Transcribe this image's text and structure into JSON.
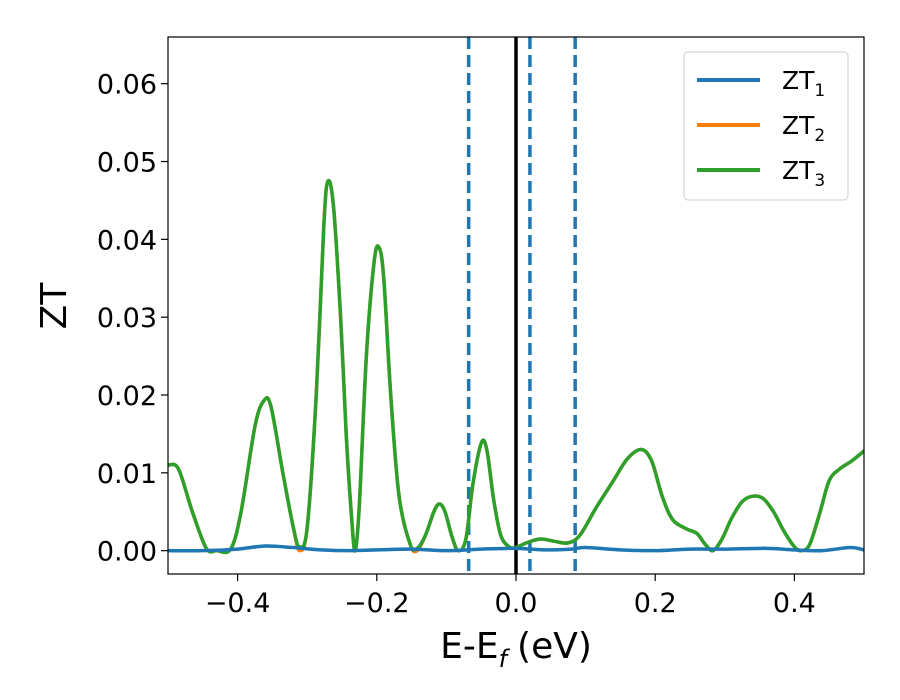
{
  "chart_data": {
    "type": "line",
    "xlabel": "E-E",
    "xlabel_subscript": "f",
    "xlabel_unit": "(eV)",
    "ylabel": "ZT",
    "xlim": [
      -0.5,
      0.5
    ],
    "ylim": [
      -0.003,
      0.066
    ],
    "x_ticks": [
      -0.4,
      -0.2,
      0.0,
      0.2,
      0.4
    ],
    "x_tick_labels": [
      "−0.4",
      "−0.2",
      "0.0",
      "0.2",
      "0.4"
    ],
    "y_ticks": [
      0.0,
      0.01,
      0.02,
      0.03,
      0.04,
      0.05,
      0.06
    ],
    "y_tick_labels": [
      "0.00",
      "0.01",
      "0.02",
      "0.03",
      "0.04",
      "0.05",
      "0.06"
    ],
    "grid": false,
    "legend_position": "top-right",
    "vertical_lines": [
      {
        "x": 0.0,
        "style": "solid",
        "color": "#000000"
      },
      {
        "x": -0.068,
        "style": "dashed",
        "color": "#1f77b4"
      },
      {
        "x": 0.02,
        "style": "dashed",
        "color": "#1f77b4"
      },
      {
        "x": 0.085,
        "style": "dashed",
        "color": "#1f77b4"
      }
    ],
    "series": [
      {
        "name": "ZT",
        "subscript": "1",
        "color": "#1f77b4",
        "points": [
          [
            -0.5,
            0.0
          ],
          [
            -0.45,
            0.0
          ],
          [
            -0.4,
            0.0002
          ],
          [
            -0.36,
            0.0006
          ],
          [
            -0.32,
            0.0004
          ],
          [
            -0.28,
            0.0001
          ],
          [
            -0.24,
            0.0
          ],
          [
            -0.2,
            0.0001
          ],
          [
            -0.15,
            0.0002
          ],
          [
            -0.1,
            0.0
          ],
          [
            -0.05,
            0.0002
          ],
          [
            0.0,
            0.0003
          ],
          [
            0.04,
            0.0001
          ],
          [
            0.08,
            0.0002
          ],
          [
            0.1,
            0.0004
          ],
          [
            0.15,
            0.0001
          ],
          [
            0.2,
            0.0
          ],
          [
            0.25,
            0.0002
          ],
          [
            0.3,
            0.0002
          ],
          [
            0.36,
            0.0003
          ],
          [
            0.4,
            0.0001
          ],
          [
            0.44,
            0.0
          ],
          [
            0.48,
            0.0004
          ],
          [
            0.5,
            0.0001
          ]
        ]
      },
      {
        "name": "ZT",
        "subscript": "2",
        "color": "#ff7f0e",
        "points": [
          [
            -0.5,
            0.011
          ],
          [
            -0.485,
            0.0105
          ],
          [
            -0.465,
            0.005
          ],
          [
            -0.445,
            0.0003
          ],
          [
            -0.43,
            0.0
          ],
          [
            -0.41,
            0.0002
          ],
          [
            -0.395,
            0.005
          ],
          [
            -0.375,
            0.016
          ],
          [
            -0.362,
            0.0193
          ],
          [
            -0.352,
            0.0185
          ],
          [
            -0.335,
            0.01
          ],
          [
            -0.32,
            0.003
          ],
          [
            -0.311,
            0.0
          ],
          [
            -0.3,
            0.003
          ],
          [
            -0.287,
            0.02
          ],
          [
            -0.276,
            0.042
          ],
          [
            -0.27,
            0.0475
          ],
          [
            -0.262,
            0.044
          ],
          [
            -0.252,
            0.03
          ],
          [
            -0.244,
            0.015
          ],
          [
            -0.236,
            0.004
          ],
          [
            -0.231,
            0.0
          ],
          [
            -0.225,
            0.006
          ],
          [
            -0.215,
            0.025
          ],
          [
            -0.204,
            0.037
          ],
          [
            -0.197,
            0.039
          ],
          [
            -0.19,
            0.035
          ],
          [
            -0.18,
            0.02
          ],
          [
            -0.168,
            0.007
          ],
          [
            -0.152,
            0.0008
          ],
          [
            -0.142,
            0.0
          ],
          [
            -0.13,
            0.002
          ],
          [
            -0.118,
            0.005
          ],
          [
            -0.11,
            0.006
          ],
          [
            -0.102,
            0.005
          ],
          [
            -0.092,
            0.0018
          ],
          [
            -0.083,
            0.0
          ],
          [
            -0.072,
            0.0015
          ],
          [
            -0.062,
            0.0085
          ],
          [
            -0.05,
            0.0138
          ],
          [
            -0.042,
            0.013
          ],
          [
            -0.032,
            0.0065
          ],
          [
            -0.022,
            0.002
          ],
          [
            -0.01,
            0.0005
          ],
          [
            0.0,
            0.0004
          ],
          [
            0.015,
            0.001
          ],
          [
            0.035,
            0.0015
          ],
          [
            0.055,
            0.0012
          ],
          [
            0.075,
            0.001
          ],
          [
            0.092,
            0.002
          ],
          [
            0.115,
            0.0055
          ],
          [
            0.14,
            0.009
          ],
          [
            0.16,
            0.0118
          ],
          [
            0.18,
            0.013
          ],
          [
            0.195,
            0.0115
          ],
          [
            0.21,
            0.007
          ],
          [
            0.225,
            0.004
          ],
          [
            0.245,
            0.0028
          ],
          [
            0.26,
            0.0022
          ],
          [
            0.272,
            0.0008
          ],
          [
            0.283,
            0.0
          ],
          [
            0.296,
            0.0015
          ],
          [
            0.31,
            0.0042
          ],
          [
            0.325,
            0.0063
          ],
          [
            0.34,
            0.007
          ],
          [
            0.355,
            0.0067
          ],
          [
            0.37,
            0.005
          ],
          [
            0.385,
            0.0025
          ],
          [
            0.4,
            0.0005
          ],
          [
            0.41,
            0.0
          ],
          [
            0.422,
            0.0008
          ],
          [
            0.437,
            0.005
          ],
          [
            0.45,
            0.009
          ],
          [
            0.465,
            0.0105
          ],
          [
            0.482,
            0.0115
          ],
          [
            0.5,
            0.0128
          ]
        ]
      },
      {
        "name": "ZT",
        "subscript": "3",
        "color": "#2ca02c",
        "points": [
          [
            -0.5,
            0.011
          ],
          [
            -0.485,
            0.0105
          ],
          [
            -0.465,
            0.005
          ],
          [
            -0.445,
            0.0003
          ],
          [
            -0.43,
            0.0
          ],
          [
            -0.41,
            0.0002
          ],
          [
            -0.395,
            0.005
          ],
          [
            -0.375,
            0.016
          ],
          [
            -0.362,
            0.0193
          ],
          [
            -0.352,
            0.0185
          ],
          [
            -0.335,
            0.01
          ],
          [
            -0.32,
            0.003
          ],
          [
            -0.311,
            0.0005
          ],
          [
            -0.3,
            0.003
          ],
          [
            -0.287,
            0.02
          ],
          [
            -0.276,
            0.042
          ],
          [
            -0.27,
            0.0475
          ],
          [
            -0.262,
            0.044
          ],
          [
            -0.252,
            0.03
          ],
          [
            -0.244,
            0.015
          ],
          [
            -0.236,
            0.004
          ],
          [
            -0.231,
            0.0
          ],
          [
            -0.225,
            0.006
          ],
          [
            -0.215,
            0.025
          ],
          [
            -0.204,
            0.037
          ],
          [
            -0.197,
            0.039
          ],
          [
            -0.19,
            0.035
          ],
          [
            -0.18,
            0.02
          ],
          [
            -0.168,
            0.007
          ],
          [
            -0.152,
            0.0008
          ],
          [
            -0.142,
            0.0003
          ],
          [
            -0.13,
            0.002
          ],
          [
            -0.118,
            0.005
          ],
          [
            -0.11,
            0.006
          ],
          [
            -0.102,
            0.005
          ],
          [
            -0.092,
            0.0018
          ],
          [
            -0.083,
            0.0
          ],
          [
            -0.072,
            0.0015
          ],
          [
            -0.062,
            0.0085
          ],
          [
            -0.05,
            0.0138
          ],
          [
            -0.042,
            0.013
          ],
          [
            -0.032,
            0.0065
          ],
          [
            -0.022,
            0.002
          ],
          [
            -0.01,
            0.0005
          ],
          [
            0.0,
            0.0004
          ],
          [
            0.015,
            0.001
          ],
          [
            0.035,
            0.0015
          ],
          [
            0.055,
            0.0012
          ],
          [
            0.075,
            0.001
          ],
          [
            0.092,
            0.002
          ],
          [
            0.115,
            0.0055
          ],
          [
            0.14,
            0.009
          ],
          [
            0.16,
            0.0118
          ],
          [
            0.18,
            0.013
          ],
          [
            0.195,
            0.0115
          ],
          [
            0.21,
            0.007
          ],
          [
            0.225,
            0.004
          ],
          [
            0.245,
            0.0028
          ],
          [
            0.26,
            0.0022
          ],
          [
            0.272,
            0.0008
          ],
          [
            0.283,
            0.0
          ],
          [
            0.296,
            0.0015
          ],
          [
            0.31,
            0.0042
          ],
          [
            0.325,
            0.0063
          ],
          [
            0.34,
            0.007
          ],
          [
            0.355,
            0.0067
          ],
          [
            0.37,
            0.005
          ],
          [
            0.385,
            0.0025
          ],
          [
            0.4,
            0.0005
          ],
          [
            0.41,
            0.0
          ],
          [
            0.422,
            0.0008
          ],
          [
            0.437,
            0.005
          ],
          [
            0.45,
            0.009
          ],
          [
            0.465,
            0.0105
          ],
          [
            0.482,
            0.0115
          ],
          [
            0.5,
            0.0128
          ]
        ]
      }
    ]
  }
}
